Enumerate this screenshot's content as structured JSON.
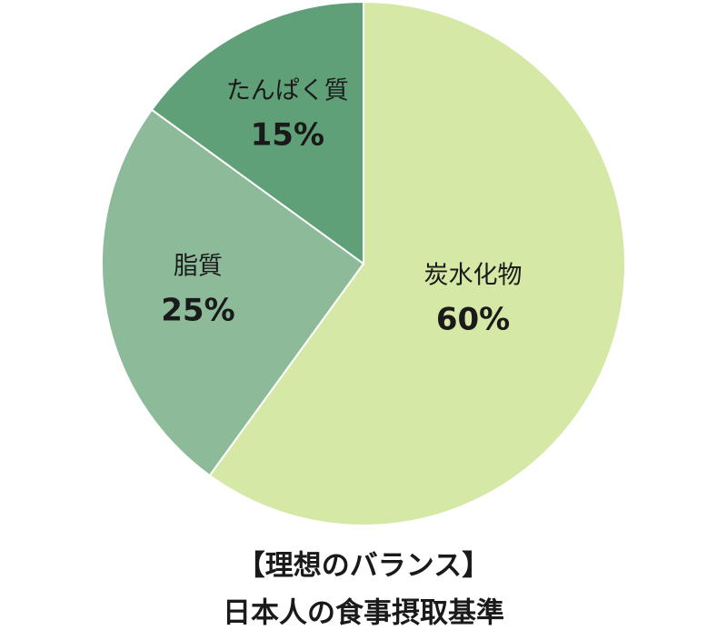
{
  "chart_data": {
    "type": "pie",
    "title": "【理想のバランス】",
    "subtitle": "日本人の食事摂取基準",
    "categories": [
      "炭水化物",
      "脂質",
      "たんぱく質"
    ],
    "values": [
      60,
      25,
      15
    ],
    "value_labels": [
      "60%",
      "25%",
      "15%"
    ],
    "colors": [
      "#d5e8a6",
      "#8dbb9a",
      "#5fa078"
    ]
  }
}
